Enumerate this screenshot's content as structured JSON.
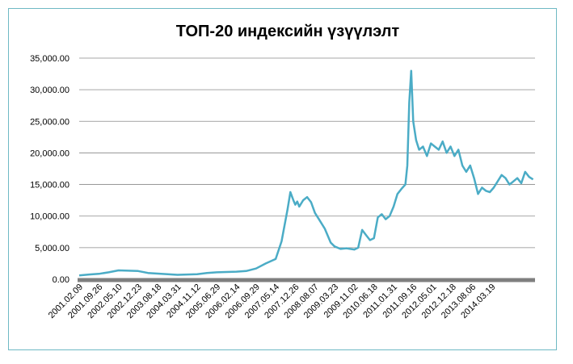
{
  "chart_data": {
    "type": "line",
    "title": "ТОП-20 индексийн үзүүлэлт",
    "xlabel": "",
    "ylabel": "",
    "ylim": [
      0,
      35000
    ],
    "grid": "horizontal",
    "legend": "none",
    "line_color": "#4bacc6",
    "y_ticks": [
      "0.00",
      "5,000.00",
      "10,000.00",
      "15,000.00",
      "20,000.00",
      "25,000.00",
      "30,000.00",
      "35,000.00"
    ],
    "y_tick_values": [
      0,
      5000,
      10000,
      15000,
      20000,
      25000,
      30000,
      35000
    ],
    "x_ticks": [
      "2001.02.09",
      "2001.09.26",
      "2002.05.10",
      "2002.12.23",
      "2003.08.18",
      "2004.03.31",
      "2004.11.12",
      "2005.06.29",
      "2006.02.14",
      "2006.09.29",
      "2007.05.14",
      "2007.12.26",
      "2008.08.07",
      "2009.03.23",
      "2009.11.02",
      "2010.06.18",
      "2011.01.31",
      "2011.09.16",
      "2012.05.01",
      "2012.12.18",
      "2013.08.06",
      "2014.03.19"
    ],
    "x_tick_index": [
      0,
      1,
      2,
      3,
      4,
      5,
      6,
      7,
      8,
      9,
      10,
      11,
      12,
      13,
      14,
      15,
      16,
      17,
      18,
      19,
      20,
      21
    ],
    "x_max_index": 23.2,
    "series": [
      {
        "x": [
          0,
          0.5,
          1,
          1.5,
          2,
          2.5,
          3,
          3.5,
          4,
          4.5,
          5,
          5.5,
          6,
          6.5,
          7,
          7.5,
          8,
          8.5,
          9,
          9.5,
          10,
          10.3,
          10.6,
          10.75,
          10.9,
          11.0,
          11.1,
          11.2,
          11.4,
          11.6,
          11.8,
          12.0,
          12.2,
          12.5,
          12.8,
          13.0,
          13.3,
          13.6,
          14.0,
          14.2,
          14.4,
          14.6,
          14.8,
          15.0,
          15.2,
          15.4,
          15.6,
          15.8,
          16.0,
          16.2,
          16.4,
          16.6,
          16.7,
          16.8,
          16.9,
          17.0,
          17.15,
          17.3,
          17.5,
          17.7,
          17.9,
          18.1,
          18.3,
          18.5,
          18.7,
          18.9,
          19.1,
          19.3,
          19.5,
          19.7,
          19.9,
          20.1,
          20.3,
          20.5,
          20.7,
          20.9,
          21.1,
          21.3,
          21.5,
          21.7,
          21.9,
          22.1,
          22.3,
          22.5,
          22.7,
          22.9,
          23.1
        ],
        "y": [
          600,
          750,
          850,
          1100,
          1400,
          1350,
          1300,
          1000,
          900,
          800,
          700,
          750,
          800,
          1000,
          1100,
          1150,
          1200,
          1300,
          1700,
          2500,
          3200,
          6000,
          11000,
          13800,
          12500,
          11800,
          12300,
          11500,
          12500,
          13000,
          12200,
          10500,
          9500,
          8000,
          5800,
          5200,
          4800,
          4900,
          4700,
          5000,
          7800,
          7000,
          6200,
          6500,
          9800,
          10300,
          9500,
          10000,
          11500,
          13500,
          14300,
          15000,
          18000,
          28000,
          33000,
          25000,
          22000,
          20500,
          21000,
          19500,
          21500,
          21000,
          20500,
          21800,
          20000,
          21000,
          19500,
          20500,
          18000,
          17000,
          18000,
          16000,
          13500,
          14500,
          14000,
          13800,
          14500,
          15500,
          16500,
          16000,
          15000,
          15500,
          16000,
          15200,
          17000,
          16200,
          15800
        ]
      }
    ]
  }
}
